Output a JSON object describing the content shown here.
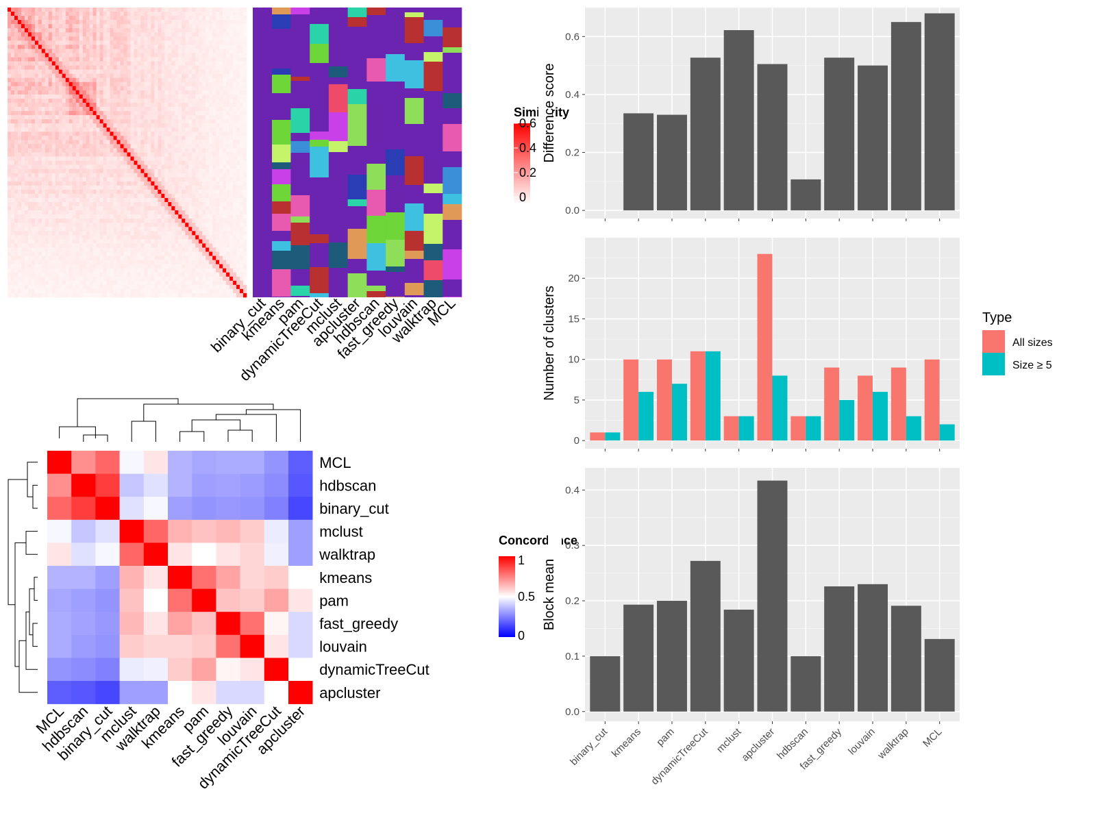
{
  "methods_top": [
    "binary_cut",
    "kmeans",
    "pam",
    "dynamicTreeCut",
    "mclust",
    "apcluster",
    "hdbscan",
    "fast_greedy",
    "louvain",
    "walktrap",
    "MCL"
  ],
  "similarity_legend": {
    "title": "Similarity",
    "ticks": [
      "0.6",
      "0.4",
      "0.2",
      "0"
    ],
    "colors": [
      "#ffffff",
      "#ff0000"
    ]
  },
  "concordance": {
    "title": "Concordance",
    "legend_ticks": [
      "1",
      "0.5",
      "0"
    ],
    "order": [
      "MCL",
      "hdbscan",
      "binary_cut",
      "mclust",
      "walktrap",
      "kmeans",
      "pam",
      "fast_greedy",
      "louvain",
      "dynamicTreeCut",
      "apcluster"
    ],
    "matrix": [
      [
        1.0,
        0.72,
        0.8,
        0.48,
        0.55,
        0.3,
        0.27,
        0.28,
        0.28,
        0.22,
        0.08
      ],
      [
        0.72,
        1.0,
        0.88,
        0.35,
        0.42,
        0.3,
        0.25,
        0.26,
        0.24,
        0.2,
        0.06
      ],
      [
        0.8,
        0.88,
        1.0,
        0.42,
        0.48,
        0.25,
        0.22,
        0.23,
        0.22,
        0.17,
        0.02
      ],
      [
        0.48,
        0.35,
        0.42,
        1.0,
        0.8,
        0.65,
        0.62,
        0.64,
        0.6,
        0.45,
        0.25
      ],
      [
        0.55,
        0.42,
        0.48,
        0.8,
        1.0,
        0.55,
        0.5,
        0.55,
        0.58,
        0.46,
        0.25
      ],
      [
        0.3,
        0.3,
        0.25,
        0.65,
        0.55,
        1.0,
        0.78,
        0.68,
        0.58,
        0.6,
        0.5
      ],
      [
        0.27,
        0.25,
        0.22,
        0.62,
        0.5,
        0.78,
        1.0,
        0.62,
        0.6,
        0.68,
        0.55
      ],
      [
        0.28,
        0.26,
        0.23,
        0.64,
        0.55,
        0.68,
        0.62,
        1.0,
        0.78,
        0.52,
        0.4
      ],
      [
        0.28,
        0.24,
        0.22,
        0.6,
        0.58,
        0.58,
        0.6,
        0.78,
        1.0,
        0.55,
        0.4
      ],
      [
        0.22,
        0.2,
        0.17,
        0.45,
        0.46,
        0.6,
        0.68,
        0.52,
        0.55,
        1.0,
        0.5
      ],
      [
        0.08,
        0.06,
        0.02,
        0.25,
        0.25,
        0.5,
        0.55,
        0.4,
        0.4,
        0.5,
        1.0
      ]
    ]
  },
  "chart_data": [
    {
      "type": "bar",
      "categories": [
        "binary_cut",
        "kmeans",
        "pam",
        "dynamicTreeCut",
        "mclust",
        "apcluster",
        "hdbscan",
        "fast_greedy",
        "louvain",
        "walktrap",
        "MCL"
      ],
      "values": [
        0.0,
        0.335,
        0.33,
        0.527,
        0.622,
        0.505,
        0.107,
        0.527,
        0.5,
        0.65,
        0.68
      ],
      "ylabel": "Difference score",
      "ylim": [
        0,
        0.7
      ],
      "yticks": [
        0.0,
        0.2,
        0.4,
        0.6
      ],
      "ytick_labels": [
        "0.0",
        "0.2",
        "0.4",
        "0.6"
      ],
      "grid": true
    },
    {
      "type": "bar",
      "categories": [
        "binary_cut",
        "kmeans",
        "pam",
        "dynamicTreeCut",
        "mclust",
        "apcluster",
        "hdbscan",
        "fast_greedy",
        "louvain",
        "walktrap",
        "MCL"
      ],
      "series": [
        {
          "name": "All sizes",
          "color": "#F8766D",
          "values": [
            1,
            10,
            10,
            11,
            3,
            23,
            3,
            9,
            8,
            9,
            10
          ]
        },
        {
          "name": "Size ≥ 5",
          "color": "#00BFC4",
          "values": [
            1,
            6,
            7,
            11,
            3,
            8,
            3,
            5,
            6,
            3,
            2
          ]
        }
      ],
      "ylabel": "Number of clusters",
      "ylim": [
        0,
        25
      ],
      "yticks": [
        0,
        5,
        10,
        15,
        20
      ],
      "ytick_labels": [
        "0",
        "5",
        "10",
        "15",
        "20"
      ],
      "legend_title": "Type",
      "legend_position": "right",
      "grid": true
    },
    {
      "type": "bar",
      "categories": [
        "binary_cut",
        "kmeans",
        "pam",
        "dynamicTreeCut",
        "mclust",
        "apcluster",
        "hdbscan",
        "fast_greedy",
        "louvain",
        "walktrap",
        "MCL"
      ],
      "values": [
        0.1,
        0.193,
        0.2,
        0.272,
        0.184,
        0.417,
        0.1,
        0.226,
        0.23,
        0.191,
        0.131
      ],
      "ylabel": "Block mean",
      "ylim": [
        0,
        0.44
      ],
      "yticks": [
        0.0,
        0.1,
        0.2,
        0.3,
        0.4
      ],
      "ytick_labels": [
        "0.0",
        "0.1",
        "0.2",
        "0.3",
        "0.4"
      ],
      "grid": true
    }
  ]
}
